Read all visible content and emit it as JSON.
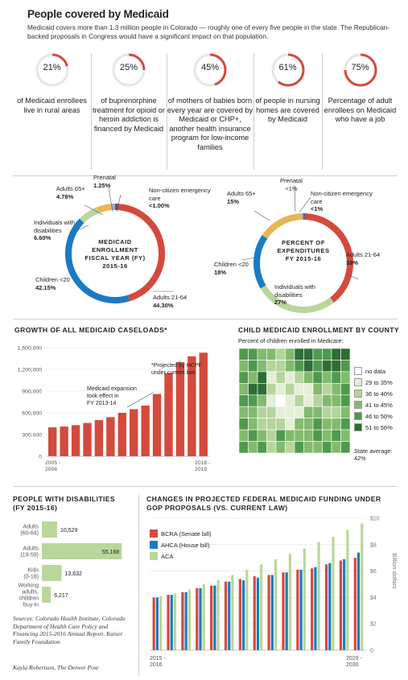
{
  "header": {
    "title": "People covered by Medicaid",
    "subtitle": "Medicaid covers more than 1.3 million people in Colorado — roughly one of every five people in the state. The Republican-backed proposals in Congress would have a significant impact on that population."
  },
  "stats": [
    {
      "pct": "21%",
      "value": 0.21,
      "text": "of Medicaid enrollees live in rural areas"
    },
    {
      "pct": "25%",
      "value": 0.25,
      "text": "of buprenorphine treatment for opioid or heroin addiction is financed by Medicaid"
    },
    {
      "pct": "45%",
      "value": 0.45,
      "text": "of mothers of babies born every year are covered by Medicaid or CHP+, another health insurance program for low-income families"
    },
    {
      "pct": "61%",
      "value": 0.61,
      "text": "of people in nursing homes are covered by Medicaid"
    },
    {
      "pct": "75%",
      "value": 0.75,
      "text": "Percentage of adult enrollees on Medicaid who have a job"
    }
  ],
  "colors": {
    "red": "#d44a3c",
    "blue": "#1a7bc4",
    "green": "#b9d79a",
    "yellow": "#e6b756",
    "gray": "#a9a9a9",
    "navy": "#3b5a9a",
    "track": "#e6e6e6"
  },
  "chart_data": [
    {
      "type": "pie",
      "id": "enrollment",
      "center_label": [
        "MEDICAID",
        "ENROLLMENT",
        "FISCAL YEAR (FY)",
        "2015-16"
      ],
      "slices": [
        {
          "name": "Adults 21-64",
          "value": 44.3,
          "label": "44.30%",
          "color": "#d44a3c"
        },
        {
          "name": "Children <20",
          "value": 42.15,
          "label": "42.15%",
          "color": "#1a7bc4"
        },
        {
          "name": "Individuals with disabilities",
          "value": 6.6,
          "label": "6.60%",
          "color": "#b9d79a"
        },
        {
          "name": "Adults 65+",
          "value": 4.78,
          "label": "4.78%",
          "color": "#e6b756"
        },
        {
          "name": "Prenatal",
          "value": 1.25,
          "label": "1.25%",
          "color": "#a9a9a9"
        },
        {
          "name": "Non-citizen emergency care",
          "value": 0.92,
          "label": "<1.00%",
          "color": "#3b5a9a"
        }
      ]
    },
    {
      "type": "pie",
      "id": "expenditures",
      "center_label": [
        "PERCENT OF",
        "EXPENDITURES",
        "FY 2015-16"
      ],
      "slices": [
        {
          "name": "Adults 21-64",
          "value": 39,
          "label": "39%",
          "color": "#d44a3c"
        },
        {
          "name": "Individuals with disabilities",
          "value": 27,
          "label": "27%",
          "color": "#b9d79a"
        },
        {
          "name": "Children <20",
          "value": 18,
          "label": "18%",
          "color": "#1a7bc4"
        },
        {
          "name": "Adults 65+",
          "value": 15,
          "label": "15%",
          "color": "#e6b756"
        },
        {
          "name": "Prenatal",
          "value": 0.5,
          "label": "<1%",
          "color": "#a9a9a9"
        },
        {
          "name": "Non-citizen emergency care",
          "value": 0.5,
          "label": "<1%",
          "color": "#3b5a9a"
        }
      ]
    },
    {
      "type": "bar",
      "id": "caseloads",
      "title": "GROWTH OF ALL MEDICAID CASELOADS*",
      "x_start_label": "2005 -\n2006",
      "x_end_label": "2018 -\n2019",
      "yticks": [
        0,
        300000,
        600000,
        900000,
        1200000,
        1500000
      ],
      "ytick_labels": [
        "0",
        "300,000",
        "600,000",
        "900,000",
        "1,200,000",
        "1,500,000"
      ],
      "ylim": [
        0,
        1500000
      ],
      "values": [
        400000,
        410000,
        430000,
        460000,
        500000,
        540000,
        600000,
        650000,
        700000,
        860000,
        1150000,
        1300000,
        1380000,
        1430000
      ],
      "annotations": [
        {
          "text": "Medicaid expansion took effect in FY 2013-14",
          "bar_index": 8
        },
        {
          "text": "*Projected by HCPF under current law",
          "bar_index": 11
        }
      ]
    },
    {
      "type": "bar",
      "id": "disabilities",
      "title": "PEOPLE WITH DISABILITIES (FY 2015-16)",
      "orientation": "horizontal",
      "categories": [
        "Adults (60-64)",
        "Adults (19-59)",
        "Kids (0-18)",
        "Working adults, children buy-in"
      ],
      "values": [
        10529,
        55168,
        13632,
        6217
      ],
      "labels": [
        "10,529",
        "55,168",
        "13,632",
        "6,217"
      ],
      "xlim": [
        0,
        60000
      ]
    },
    {
      "type": "bar",
      "id": "funding",
      "title": "CHANGES IN PROJECTED FEDERAL MEDICAID FUNDING UNDER GOP PROPOSALS (VS. CURRENT LAW)",
      "ylabel": "Billion dollars",
      "yticks": [
        0,
        2,
        4,
        6,
        8,
        10
      ],
      "ytick_labels": [
        "0",
        "$2",
        "$4",
        "$6",
        "$8",
        "$10"
      ],
      "ylim": [
        0,
        10
      ],
      "x_start_label": "2015 -\n2016",
      "x_end_label": "2029 -\n2030",
      "series": [
        {
          "name": "BCRA (Senate bill)",
          "color": "#d44a3c",
          "values": [
            4.0,
            4.2,
            4.4,
            4.7,
            4.9,
            5.2,
            5.4,
            5.6,
            5.7,
            5.9,
            6.1,
            6.2,
            6.5,
            6.8,
            7.0
          ]
        },
        {
          "name": "AHCA (House bill)",
          "color": "#1a7bc4",
          "values": [
            4.0,
            4.2,
            4.4,
            4.7,
            4.9,
            5.2,
            5.3,
            5.5,
            5.7,
            5.9,
            6.1,
            6.3,
            6.6,
            6.9,
            7.4
          ]
        },
        {
          "name": "ACA",
          "color": "#b9d79a",
          "values": [
            4.1,
            4.3,
            4.6,
            5.0,
            5.3,
            5.7,
            6.1,
            6.5,
            6.9,
            7.3,
            7.7,
            8.2,
            8.6,
            9.1,
            9.6
          ]
        }
      ]
    }
  ],
  "labels": {
    "enroll": {
      "prenatal": "Prenatal",
      "prenatal_v": "1.25%",
      "a65": "Adults 65+",
      "a65_v": "4.78%",
      "noncit": "Non-citizen emergency care",
      "noncit_v": "<1.00%",
      "disab": "Individuals with disabilities",
      "disab_v": "6.60%",
      "children": "Children <20",
      "children_v": "42.15%",
      "adults": "Adults 21-64",
      "adults_v": "44.30%"
    },
    "exp": {
      "prenatal": "Prenatal",
      "prenatal_v": "<1%",
      "a65": "Adults 65+",
      "a65_v": "15%",
      "noncit": "Non-citizen emergency care",
      "noncit_v": "<1%",
      "adults": "Adults 21-64",
      "adults_v": "39%",
      "children": "Children <20",
      "children_v": "18%",
      "disab": "Individuals with disabilities",
      "disab_v": "27%"
    }
  },
  "map": {
    "title": "CHILD MEDICAID ENROLLMENT BY COUNTY",
    "subtitle": "Percent of children enrolled in Medicare:",
    "legend": [
      {
        "label": "no data",
        "color": "#ffffff"
      },
      {
        "label": "29 to 35%",
        "color": "#e4efd8"
      },
      {
        "label": "36 to 40%",
        "color": "#b5d59c"
      },
      {
        "label": "41 to 45%",
        "color": "#82bb6c"
      },
      {
        "label": "46 to 50%",
        "color": "#4f9a4e"
      },
      {
        "label": "51 to 56%",
        "color": "#2d6e35"
      }
    ],
    "state_avg_label": "State average:",
    "state_avg_value": "42%"
  },
  "footer": {
    "sources": "Sources: Colorado Health Institute, Colorado Department of Health Care Policy and Financing 2015-2016 Annual Report, Kaiser Family Foundation",
    "credit": "Kayla Robertson, The Denver Post"
  }
}
